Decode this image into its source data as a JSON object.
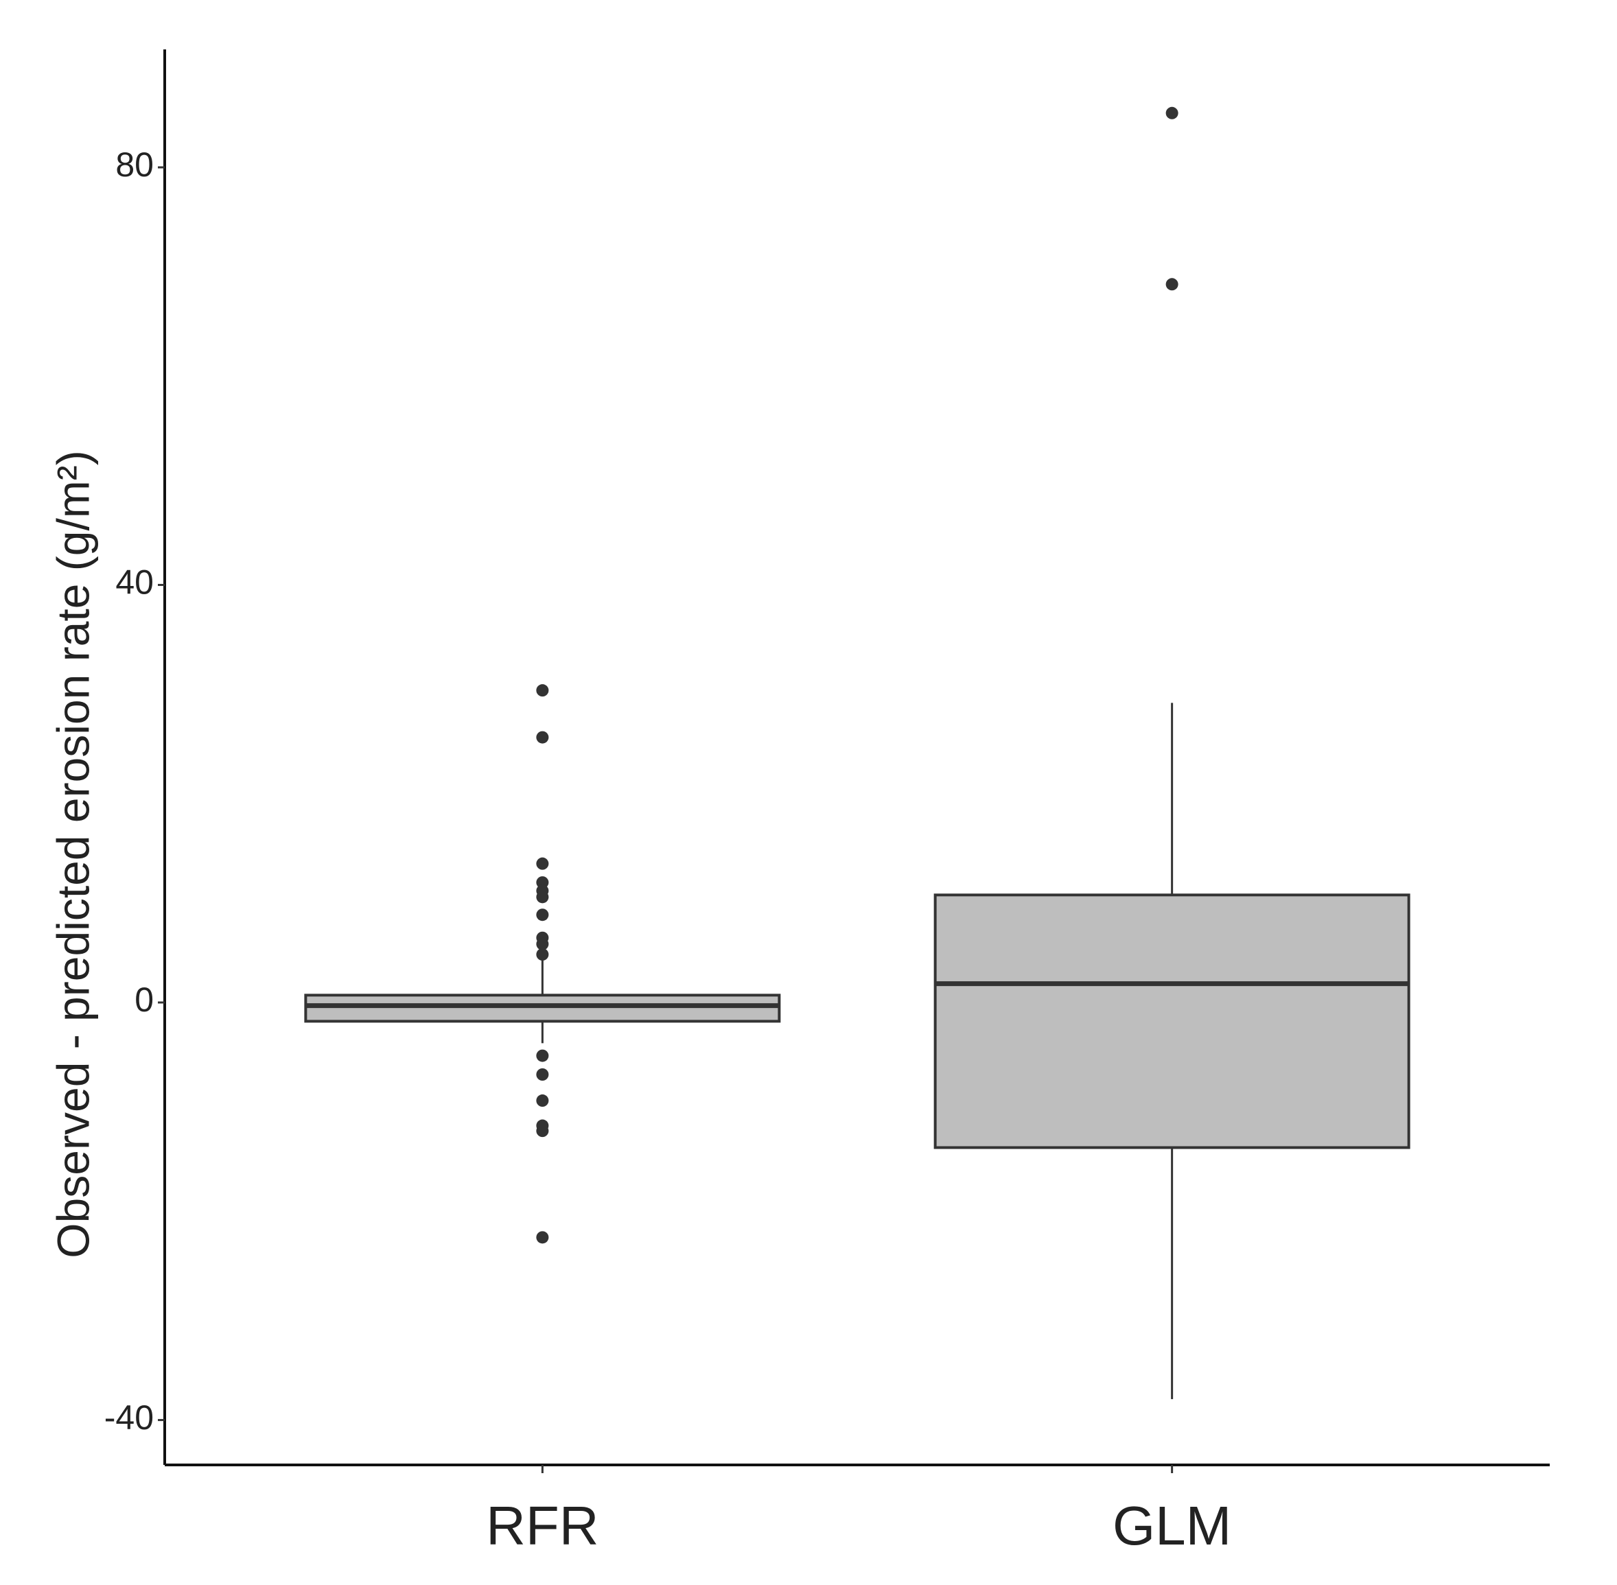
{
  "chart_data": {
    "type": "box",
    "y_label": "Observed - predicted erosion rate (g/m²)",
    "categories": [
      "RFR",
      "GLM"
    ],
    "boxes": [
      {
        "min": -3.9,
        "q1": -1.8,
        "median": -0.3,
        "q3": 0.7,
        "max": 4.4,
        "outliers": [
          29.9,
          25.4,
          13.3,
          11.5,
          10.7,
          10.1,
          8.4,
          6.2,
          5.6,
          4.6,
          -5.1,
          -6.9,
          -9.4,
          -11.8,
          -12.3,
          -22.5
        ]
      },
      {
        "min": -38.0,
        "q1": -13.9,
        "median": 1.8,
        "q3": 10.3,
        "max": 28.7,
        "outliers": [
          85.2,
          68.8
        ]
      }
    ],
    "color": "#bebebe",
    "ylim": [
      -44.3,
      91.3
    ],
    "yticks": [
      -40,
      0,
      40,
      80
    ]
  }
}
